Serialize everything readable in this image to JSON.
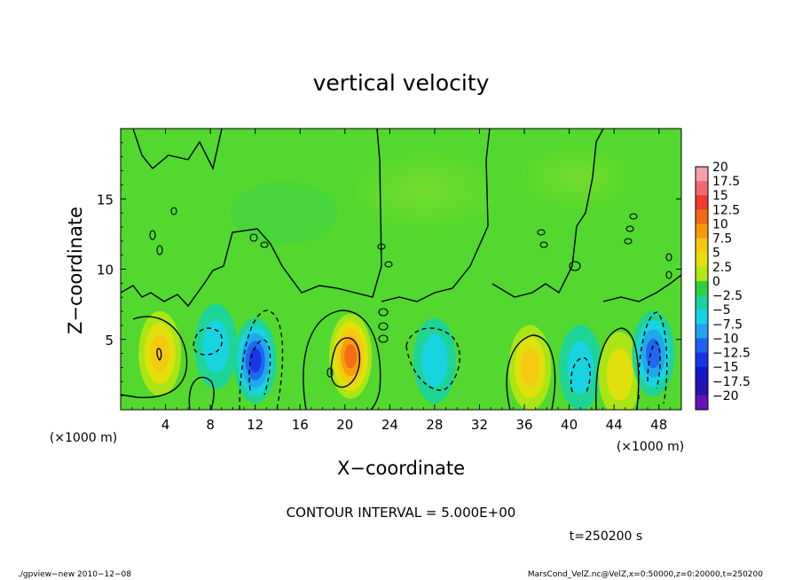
{
  "chart_data": {
    "type": "heatmap",
    "title": "vertical velocity",
    "xlabel": "X−coordinate",
    "ylabel": "Z−coordinate",
    "x_unit_left": "(×1000 m)",
    "x_unit_right": "(×1000 m)",
    "xlim": [
      0,
      50
    ],
    "ylim": [
      0,
      20
    ],
    "x_ticks": [
      4,
      8,
      12,
      16,
      20,
      24,
      28,
      32,
      36,
      40,
      44,
      48
    ],
    "y_ticks": [
      5,
      10,
      15
    ],
    "colorbar": {
      "labels": [
        "20",
        "17.5",
        "15",
        "12.5",
        "10",
        "7.5",
        "5",
        "2.5",
        "0",
        "−2.5",
        "−5",
        "−7.5",
        "−10",
        "−12.5",
        "−15",
        "−17.5",
        "−20"
      ],
      "colors": [
        "#f5a0a8",
        "#f06a70",
        "#ee3a30",
        "#f26a18",
        "#f59a10",
        "#f5c810",
        "#e6e00a",
        "#b2e614",
        "#2fd23c",
        "#1ad2a0",
        "#18d2e6",
        "#22a4ee",
        "#2062f0",
        "#1834e6",
        "#1418c8",
        "#2812b4",
        "#6414b4"
      ]
    },
    "contour_interval": "CONTOUR INTERVAL = 5.000E+00",
    "time_label": "t=250200 s",
    "features": [
      {
        "x": 3.5,
        "z": 4.0,
        "w": 6
      },
      {
        "x": 8.5,
        "z": 4.5,
        "w": -3
      },
      {
        "x": 12.0,
        "z": 3.5,
        "w": -11
      },
      {
        "x": 20.5,
        "z": 3.8,
        "w": 11
      },
      {
        "x": 28.0,
        "z": 3.5,
        "w": -5
      },
      {
        "x": 36.5,
        "z": 3.0,
        "w": 7
      },
      {
        "x": 41.0,
        "z": 3.0,
        "w": -3
      },
      {
        "x": 44.5,
        "z": 2.5,
        "w": 5
      },
      {
        "x": 47.5,
        "z": 4.0,
        "w": -9
      }
    ]
  },
  "footer": {
    "left": "./gpview−new   2010−12−08",
    "right": "MarsCond_VelZ.nc@VelZ,x=0:50000,z=0:20000,t=250200"
  }
}
